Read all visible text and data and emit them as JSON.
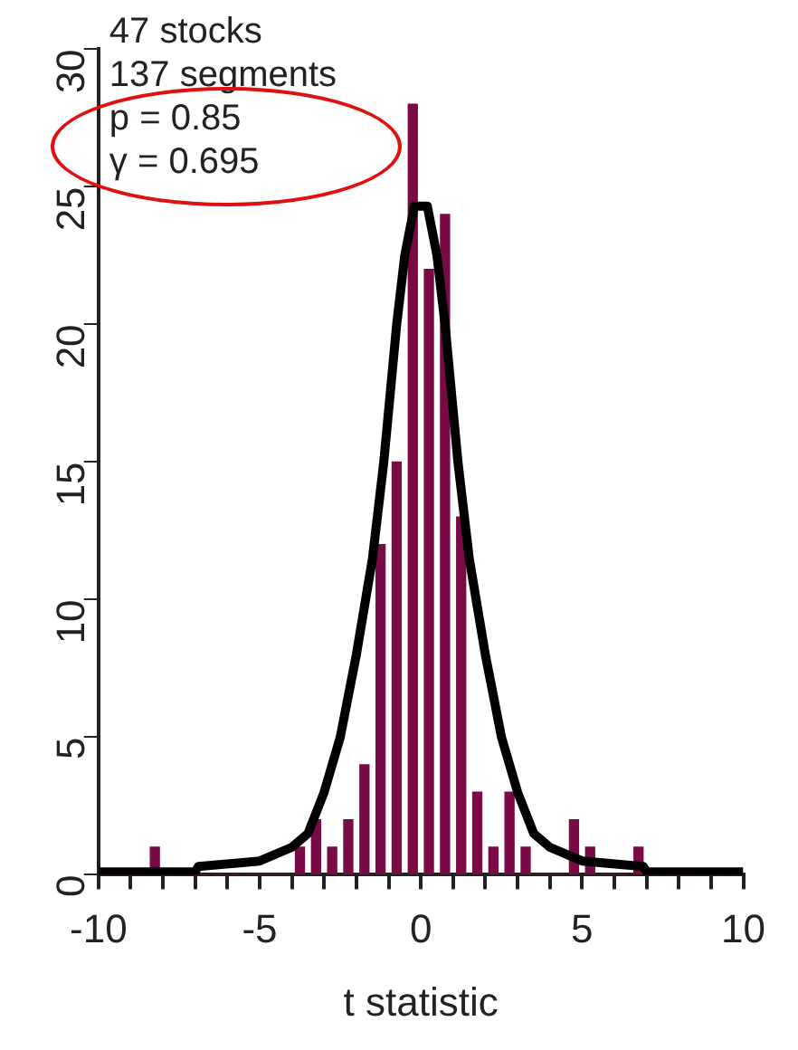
{
  "chart_data": {
    "type": "histogram",
    "xlabel": "t statistic",
    "annotations": [
      "47 stocks",
      "137 segments",
      "p = 0.85",
      "γ = 0.695"
    ],
    "bins": [
      -10,
      -9.5,
      -9,
      -8.5,
      -8,
      -7.5,
      -7,
      -6.5,
      -6,
      -5.5,
      -5,
      -4.5,
      -4,
      -3.5,
      -3,
      -2.5,
      -2,
      -1.5,
      -1,
      -0.5,
      0,
      0.5,
      1,
      1.5,
      2,
      2.5,
      3,
      3.5,
      4,
      4.5,
      5,
      5.5,
      6,
      6.5,
      7,
      7.5,
      8,
      8.5,
      9,
      9.5,
      10
    ],
    "values": [
      0,
      0,
      0,
      1,
      0,
      0,
      0,
      0,
      0,
      0,
      0,
      0,
      1,
      2,
      1,
      2,
      4,
      12,
      15,
      28,
      22,
      24,
      13,
      3,
      1,
      3,
      1,
      0,
      0,
      2,
      1,
      0,
      0,
      1,
      0,
      0,
      0,
      0,
      0,
      0
    ],
    "color": "#7a0a45",
    "series": [
      {
        "type": "line",
        "color": "#000000",
        "x": [
          -10,
          -7,
          -6.9,
          -5,
          -4,
          -3.5,
          -3,
          -2.5,
          -2,
          -1.5,
          -1.15,
          -0.75,
          -0.5,
          -0.2,
          0.2,
          0.5,
          0.75,
          1.15,
          1.5,
          2,
          2.5,
          3,
          3.5,
          4,
          5,
          6.9,
          7,
          10
        ],
        "values": [
          0.1,
          0.1,
          0.3,
          0.5,
          1,
          1.5,
          3,
          5,
          8,
          11.5,
          15,
          20,
          22.5,
          24.3,
          24.3,
          22.5,
          20,
          15,
          11.5,
          8,
          5,
          3,
          1.5,
          1,
          0.5,
          0.3,
          0.1,
          0.1
        ]
      }
    ],
    "xlim": [
      -10,
      10
    ],
    "xticks": [
      -10,
      {
        "value": -9,
        "label": null
      },
      {
        "value": -8,
        "label": null
      },
      {
        "value": -7,
        "label": null
      },
      {
        "value": -6,
        "label": null
      },
      -5,
      {
        "value": -4,
        "label": null
      },
      {
        "value": -3,
        "label": null
      },
      {
        "value": -2,
        "label": null
      },
      {
        "value": -1,
        "label": null
      },
      0,
      {
        "value": 1,
        "label": null
      },
      {
        "value": 2,
        "label": null
      },
      {
        "value": 3,
        "label": null
      },
      {
        "value": 4,
        "label": null
      },
      5,
      {
        "value": 6,
        "label": null
      },
      {
        "value": 7,
        "label": null
      },
      {
        "value": 8,
        "label": null
      },
      {
        "value": 9,
        "label": null
      },
      10
    ],
    "ylim": [
      0,
      30
    ],
    "yticks": [
      0,
      5,
      10,
      15,
      20,
      25,
      30
    ],
    "grid": false,
    "legend": false
  }
}
